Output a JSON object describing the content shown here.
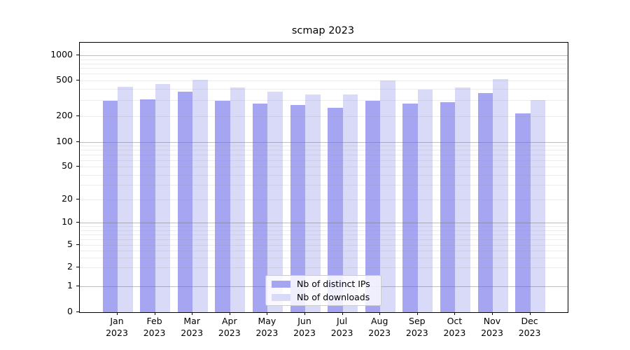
{
  "chart_data": {
    "type": "bar",
    "title": "scmap 2023",
    "xlabel": "",
    "ylabel": "",
    "yscale": "symlog",
    "grid": true,
    "ylim": [
      0,
      1400
    ],
    "yticks": [
      "0",
      "1",
      "2",
      "5",
      "10",
      "20",
      "50",
      "100",
      "200",
      "500",
      "1000"
    ],
    "categories": [
      {
        "month": "Jan",
        "year": "2023"
      },
      {
        "month": "Feb",
        "year": "2023"
      },
      {
        "month": "Mar",
        "year": "2023"
      },
      {
        "month": "Apr",
        "year": "2023"
      },
      {
        "month": "May",
        "year": "2023"
      },
      {
        "month": "Jun",
        "year": "2023"
      },
      {
        "month": "Jul",
        "year": "2023"
      },
      {
        "month": "Aug",
        "year": "2023"
      },
      {
        "month": "Sep",
        "year": "2023"
      },
      {
        "month": "Oct",
        "year": "2023"
      },
      {
        "month": "Nov",
        "year": "2023"
      },
      {
        "month": "Dec",
        "year": "2023"
      }
    ],
    "series": [
      {
        "name": "Nb of distinct IPs",
        "color": "#a5a5f1",
        "values": [
          298,
          308,
          375,
          297,
          277,
          266,
          250,
          297,
          274,
          287,
          360,
          214
        ]
      },
      {
        "name": "Nb of downloads",
        "color": "#d9d9f8",
        "values": [
          425,
          451,
          505,
          412,
          373,
          347,
          350,
          498,
          391,
          418,
          512,
          300
        ]
      }
    ],
    "legend_position": "lower center"
  }
}
